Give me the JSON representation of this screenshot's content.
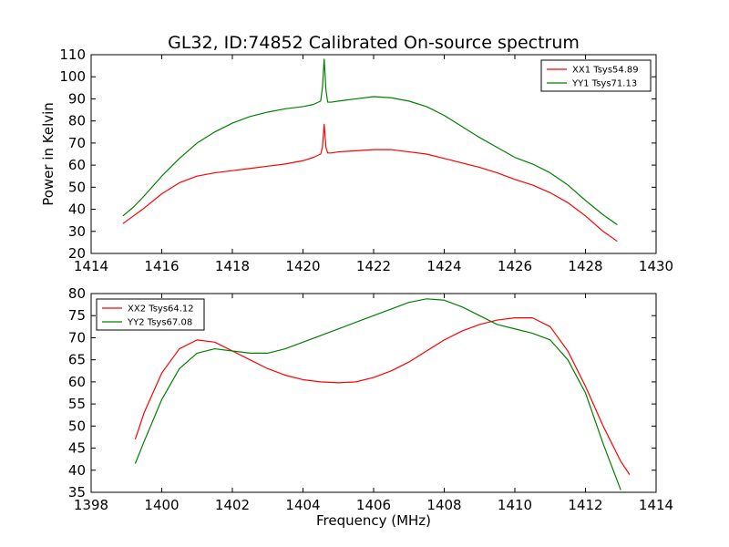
{
  "page_title": "GL32, ID:74852 Calibrated On-source spectrum",
  "chart_data": [
    {
      "type": "line",
      "title": "GL32, ID:74852 Calibrated On-source spectrum",
      "xlabel": "",
      "ylabel": "Power in Kelvin",
      "xlim": [
        1414,
        1430
      ],
      "ylim": [
        20,
        110
      ],
      "xticks": [
        1414,
        1416,
        1418,
        1420,
        1422,
        1424,
        1426,
        1428,
        1430
      ],
      "yticks": [
        20,
        30,
        40,
        50,
        60,
        70,
        80,
        90,
        100,
        110
      ],
      "legend_position": "top-right",
      "grid": false,
      "series": [
        {
          "name": "XX1 Tsys54.89",
          "color": "#ff0000",
          "x": [
            1414.9,
            1415.2,
            1415.5,
            1416.0,
            1416.5,
            1417.0,
            1417.5,
            1418.0,
            1418.5,
            1419.0,
            1419.5,
            1420.0,
            1420.3,
            1420.5,
            1420.55,
            1420.6,
            1420.65,
            1420.7,
            1420.8,
            1421.0,
            1421.5,
            1422.0,
            1422.5,
            1423.0,
            1423.5,
            1424.0,
            1424.5,
            1425.0,
            1425.5,
            1426.0,
            1426.5,
            1427.0,
            1427.5,
            1428.0,
            1428.5,
            1428.9
          ],
          "y": [
            33.5,
            37,
            40.5,
            47,
            52,
            55,
            56.5,
            57.5,
            58.5,
            59.5,
            60.5,
            62,
            63.5,
            65,
            68,
            78.5,
            68,
            65.5,
            65.5,
            66,
            66.5,
            67,
            67,
            66,
            65,
            63,
            61,
            59,
            56.5,
            53.5,
            51,
            47.5,
            43,
            37,
            30,
            25.5
          ]
        },
        {
          "name": "YY1 Tsys71.13",
          "color": "#008000",
          "x": [
            1414.9,
            1415.2,
            1415.5,
            1416.0,
            1416.5,
            1417.0,
            1417.5,
            1418.0,
            1418.5,
            1419.0,
            1419.5,
            1420.0,
            1420.3,
            1420.5,
            1420.55,
            1420.6,
            1420.65,
            1420.7,
            1420.8,
            1421.0,
            1421.5,
            1422.0,
            1422.5,
            1423.0,
            1423.5,
            1424.0,
            1424.5,
            1425.0,
            1425.5,
            1426.0,
            1426.5,
            1427.0,
            1427.5,
            1428.0,
            1428.5,
            1428.9
          ],
          "y": [
            37,
            41,
            46,
            55,
            63,
            70,
            75,
            79,
            82,
            84,
            85.5,
            86.5,
            87.5,
            89,
            95,
            108,
            94,
            88.5,
            88.5,
            89,
            90,
            91,
            90.5,
            89,
            86.5,
            82.5,
            77.5,
            72.5,
            68,
            63.5,
            60.5,
            56.5,
            51,
            44,
            37.5,
            33
          ]
        }
      ]
    },
    {
      "type": "line",
      "title": "",
      "xlabel": "Frequency (MHz)",
      "ylabel": "",
      "xlim": [
        1398,
        1414
      ],
      "ylim": [
        35,
        80
      ],
      "xticks": [
        1398,
        1400,
        1402,
        1404,
        1406,
        1408,
        1410,
        1412,
        1414
      ],
      "yticks": [
        35,
        40,
        45,
        50,
        55,
        60,
        65,
        70,
        75,
        80
      ],
      "legend_position": "top-left",
      "grid": false,
      "series": [
        {
          "name": "XX2 Tsys64.12",
          "color": "#ff0000",
          "x": [
            1399.25,
            1399.5,
            1400.0,
            1400.5,
            1401.0,
            1401.5,
            1402.0,
            1402.5,
            1403.0,
            1403.5,
            1404.0,
            1404.5,
            1405.0,
            1405.5,
            1406.0,
            1406.5,
            1407.0,
            1407.5,
            1408.0,
            1408.5,
            1409.0,
            1409.5,
            1410.0,
            1410.5,
            1411.0,
            1411.5,
            1412.0,
            1412.5,
            1413.0,
            1413.25
          ],
          "y": [
            47,
            53,
            62,
            67.5,
            69.5,
            69,
            67,
            65,
            63,
            61.5,
            60.5,
            60,
            59.8,
            60,
            61,
            62.5,
            64.5,
            67,
            69.5,
            71.5,
            73,
            74,
            74.5,
            74.5,
            72.5,
            67,
            59,
            50,
            42,
            39
          ]
        },
        {
          "name": "YY2 Tsys67.08",
          "color": "#008000",
          "x": [
            1399.25,
            1399.5,
            1400.0,
            1400.5,
            1401.0,
            1401.5,
            1402.0,
            1402.5,
            1403.0,
            1403.5,
            1404.0,
            1404.5,
            1405.0,
            1405.5,
            1406.0,
            1406.5,
            1407.0,
            1407.5,
            1408.0,
            1408.5,
            1409.0,
            1409.5,
            1410.0,
            1410.5,
            1411.0,
            1411.5,
            1412.0,
            1412.5,
            1413.0
          ],
          "y": [
            41.5,
            46.5,
            56,
            63,
            66.5,
            67.5,
            67,
            66.5,
            66.5,
            67.5,
            69,
            70.5,
            72,
            73.5,
            75,
            76.5,
            78,
            78.8,
            78.5,
            77,
            75,
            73,
            72,
            71,
            69.5,
            65,
            57.5,
            46,
            35.5
          ]
        }
      ]
    }
  ]
}
